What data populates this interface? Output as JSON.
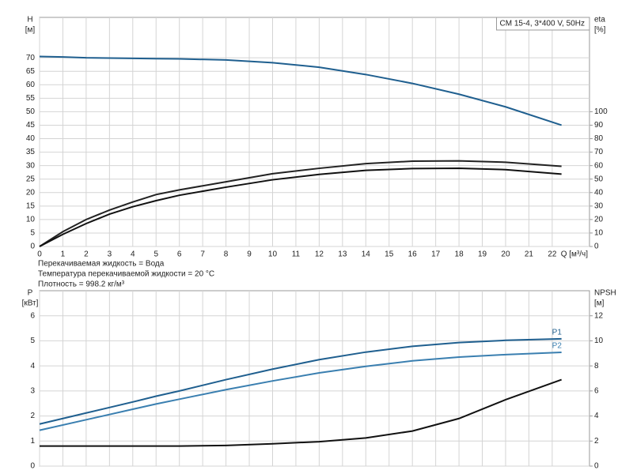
{
  "chart_data": [
    {
      "type": "line",
      "title": "CM 15-4, 3*400 V, 50Hz",
      "y_label": "H",
      "y_unit": "[м]",
      "y2_label": "eta",
      "y2_unit": "[%]",
      "x_label": "Q [м³/ч]",
      "notes": [
        "Перекачиваемая жидкость = Вода",
        "Температура перекачиваемой жидкости = 20 °C",
        "Плотность = 998.2 кг/м³"
      ],
      "x": [
        0,
        1,
        2,
        3,
        4,
        5,
        6,
        8,
        10,
        12,
        14,
        16,
        18,
        20,
        22.4
      ],
      "series": [
        {
          "color": "#1f5f8f",
          "values": [
            70.5,
            70.3,
            70,
            69.9,
            69.8,
            69.7,
            69.6,
            69.2,
            68.2,
            66.5,
            63.8,
            60.5,
            56.5,
            51.8,
            45
          ]
        },
        {
          "color": "#222222",
          "axis": "y2",
          "values": [
            0,
            11,
            20,
            27,
            33,
            38.5,
            42,
            48,
            54,
            58,
            61.5,
            63.3,
            63.5,
            62.5,
            59.5
          ]
        },
        {
          "color": "#111111",
          "axis": "y2",
          "values": [
            0,
            9,
            17,
            24,
            29.5,
            34,
            38,
            44,
            49.5,
            53.5,
            56.5,
            57.8,
            58,
            57,
            53.7
          ]
        }
      ],
      "xlim": [
        0,
        23.6
      ],
      "xticks": [
        0,
        1,
        2,
        3,
        4,
        5,
        6,
        7,
        8,
        9,
        10,
        11,
        12,
        13,
        14,
        15,
        16,
        17,
        18,
        19,
        20,
        21,
        22
      ],
      "xtick_labels": true,
      "ylim": [
        0,
        85
      ],
      "yticks": [
        0,
        5,
        10,
        15,
        20,
        25,
        30,
        35,
        40,
        45,
        50,
        55,
        60,
        65,
        70
      ],
      "y2lim": [
        0,
        170
      ],
      "y2ticks": [
        0,
        10,
        20,
        30,
        40,
        50,
        60,
        70,
        80,
        90,
        100
      ],
      "grid": true
    },
    {
      "type": "line",
      "y_label": "P",
      "y_unit": "[кВт]",
      "y2_label": "NPSH",
      "y2_unit": "[м]",
      "x": [
        0,
        2,
        4,
        5,
        6,
        8,
        10,
        12,
        14,
        16,
        18,
        20,
        22.4
      ],
      "series": [
        {
          "name": "P1",
          "color": "#1f5f8f",
          "values": [
            1.68,
            2.12,
            2.56,
            2.79,
            3.0,
            3.45,
            3.87,
            4.25,
            4.55,
            4.78,
            4.93,
            5.02,
            5.08
          ]
        },
        {
          "name": "P2",
          "color": "#3a7fb0",
          "values": [
            1.43,
            1.85,
            2.27,
            2.48,
            2.67,
            3.05,
            3.4,
            3.72,
            3.98,
            4.2,
            4.35,
            4.45,
            4.54
          ]
        },
        {
          "color": "#111111",
          "axis": "y2",
          "values": [
            1.6,
            1.6,
            1.6,
            1.6,
            1.6,
            1.65,
            1.78,
            1.95,
            2.25,
            2.8,
            3.8,
            5.3,
            6.9
          ]
        }
      ],
      "xlim": [
        0,
        23.6
      ],
      "xticks": [
        0,
        1,
        2,
        3,
        4,
        5,
        6,
        7,
        8,
        9,
        10,
        11,
        12,
        13,
        14,
        15,
        16,
        17,
        18,
        19,
        20,
        21,
        22
      ],
      "xtick_labels": false,
      "ylim": [
        0,
        7
      ],
      "yticks": [
        0,
        1,
        2,
        3,
        4,
        5,
        6
      ],
      "y2lim": [
        0,
        14
      ],
      "y2ticks": [
        0,
        2,
        4,
        6,
        8,
        10,
        12
      ],
      "grid": true
    }
  ]
}
